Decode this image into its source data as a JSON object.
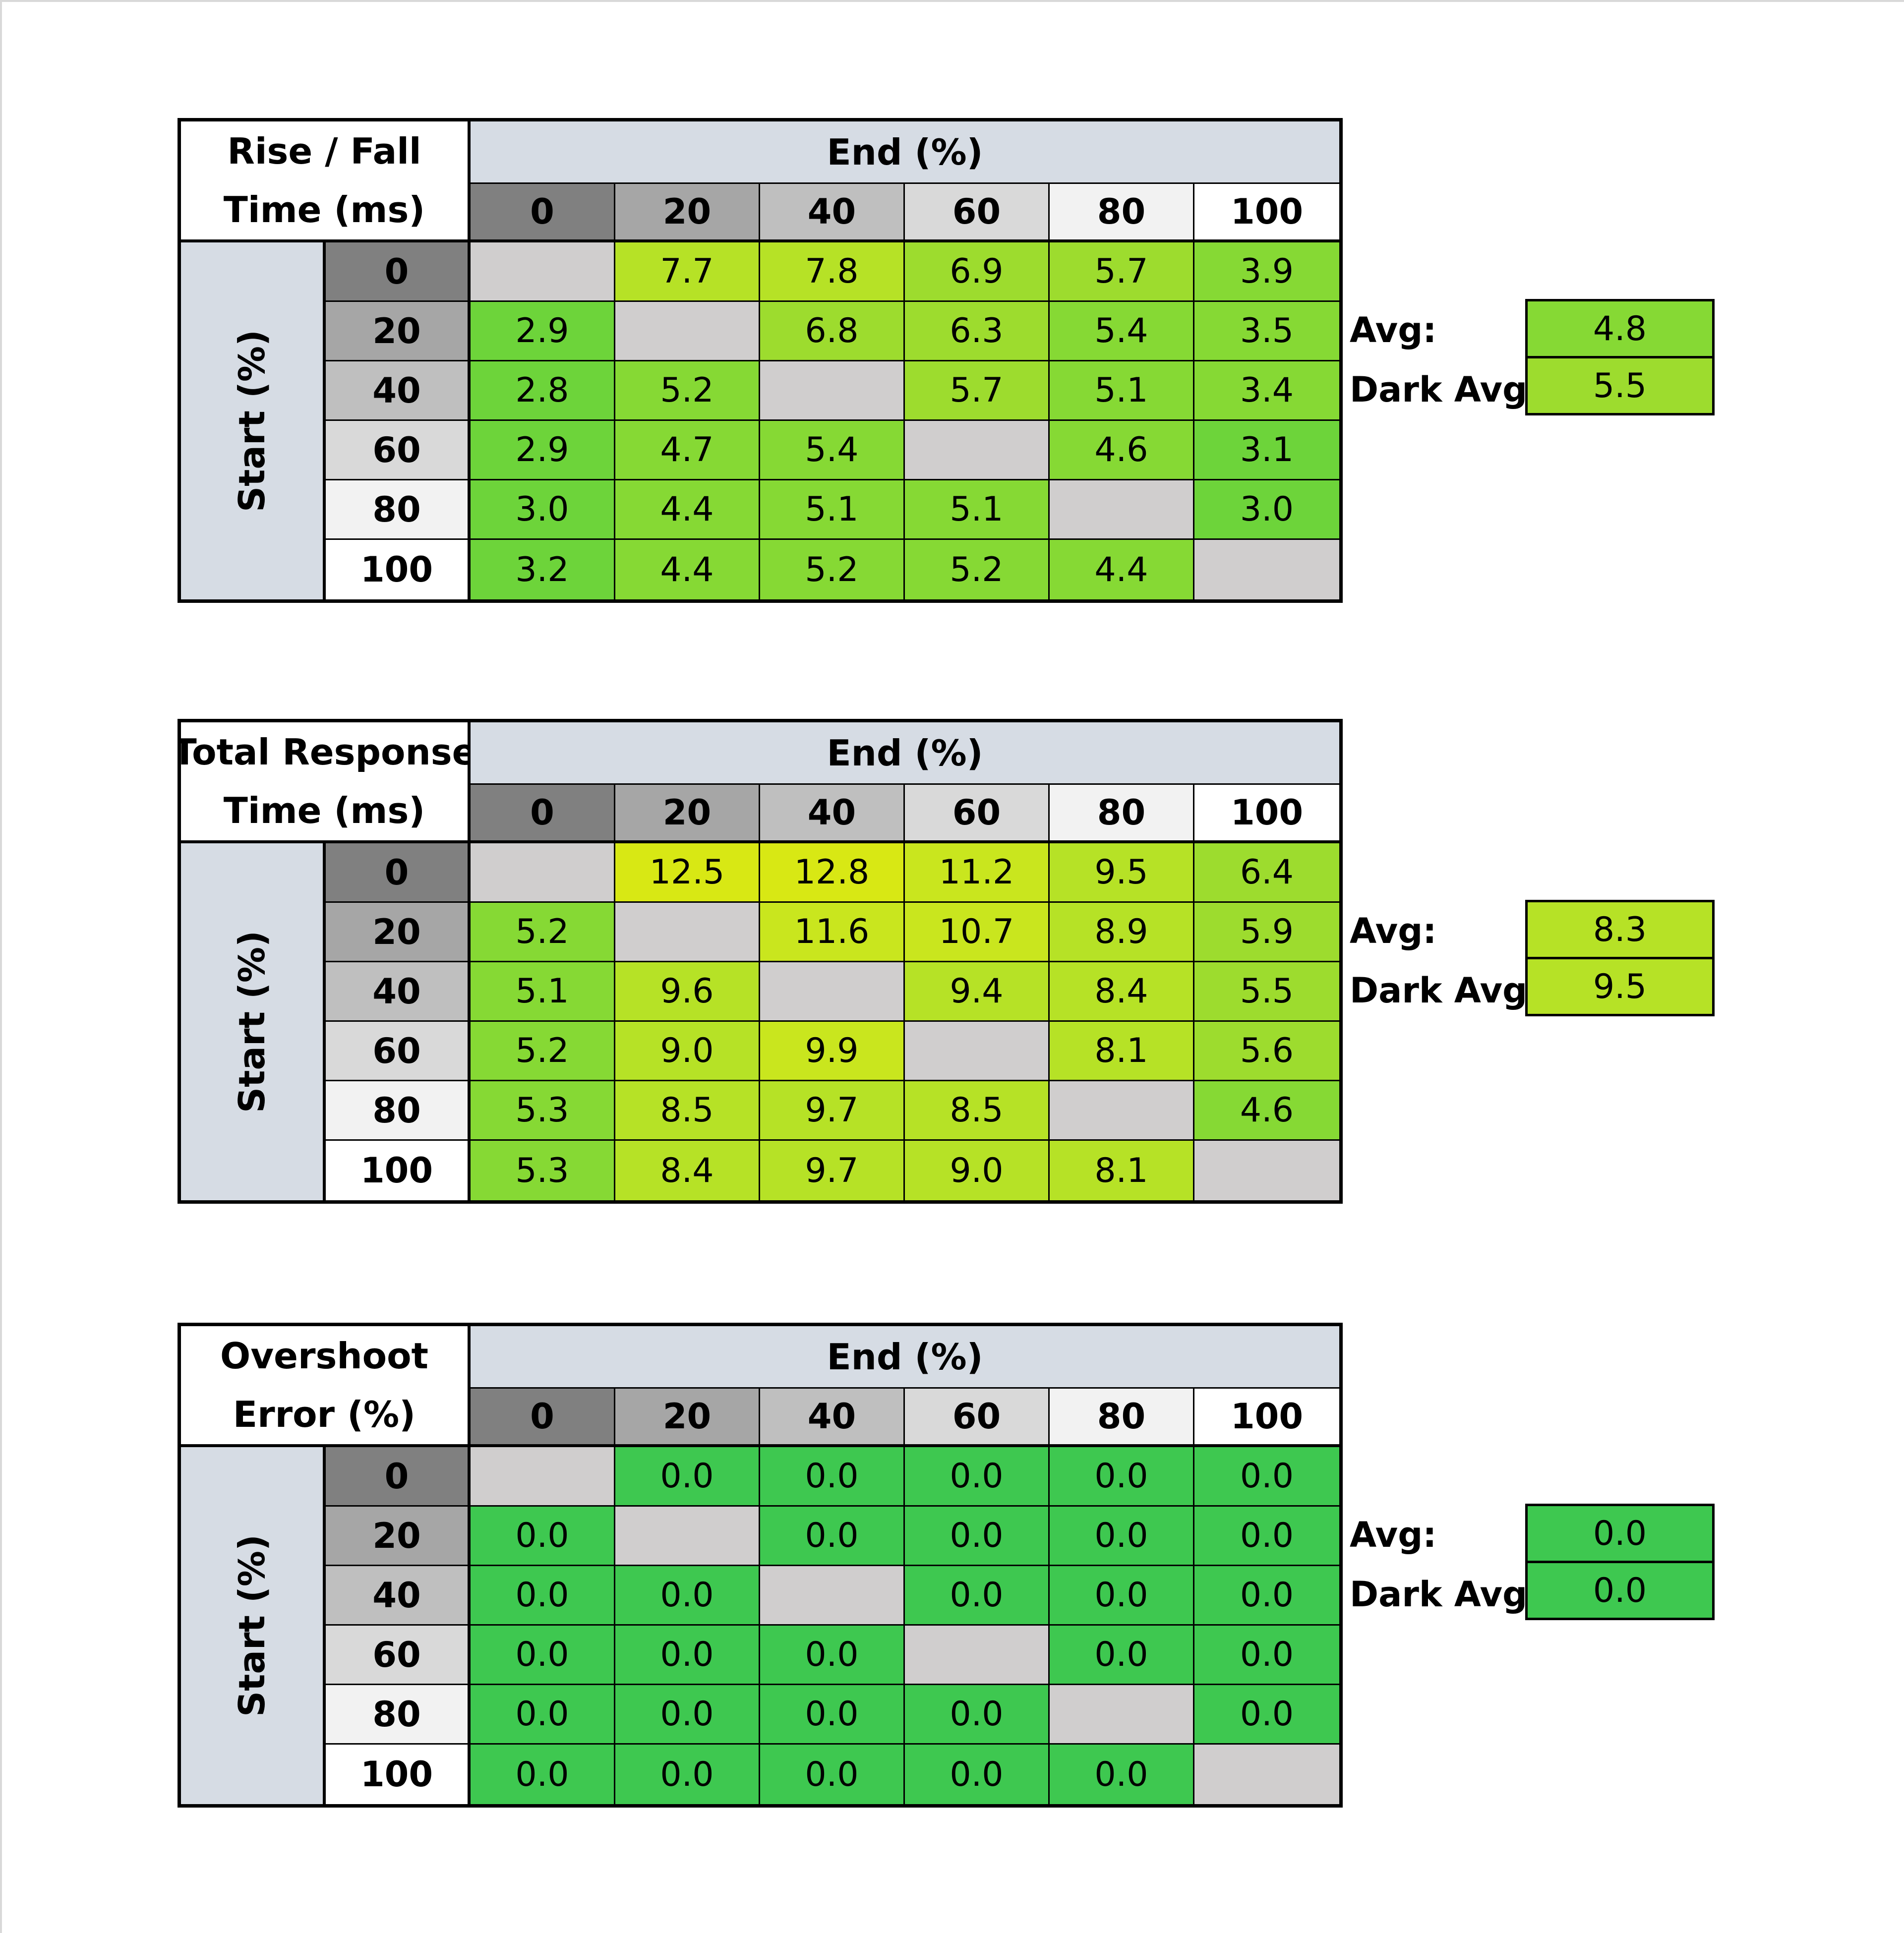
{
  "colors": {
    "header_blue": "#d6dce4",
    "empty_cell": "#d0cece",
    "scale": [
      "#3ec850",
      "#6dd43a",
      "#86d934",
      "#9ddc2e",
      "#b6e226",
      "#c9e61e",
      "#d8e814"
    ]
  },
  "level_colors": [
    "#808080",
    "#a6a6a6",
    "#bfbfbf",
    "#d9d9d9",
    "#f2f2f2",
    "#ffffff"
  ],
  "chart_data": [
    {
      "type": "heatmap",
      "title_lines": [
        "Rise / Fall",
        "Time (ms)"
      ],
      "xlabel": "End (%)",
      "ylabel": "Start (%)",
      "x": [
        "0",
        "20",
        "40",
        "60",
        "80",
        "100"
      ],
      "y": [
        "0",
        "20",
        "40",
        "60",
        "80",
        "100"
      ],
      "values": [
        [
          null,
          "7.7",
          "7.8",
          "6.9",
          "5.7",
          "3.9"
        ],
        [
          "2.9",
          null,
          "6.8",
          "6.3",
          "5.4",
          "3.5"
        ],
        [
          "2.8",
          "5.2",
          null,
          "5.7",
          "5.1",
          "3.4"
        ],
        [
          "2.9",
          "4.7",
          "5.4",
          null,
          "4.6",
          "3.1"
        ],
        [
          "3.0",
          "4.4",
          "5.1",
          "5.1",
          null,
          "3.0"
        ],
        [
          "3.2",
          "4.4",
          "5.2",
          "5.2",
          "4.4",
          null
        ]
      ],
      "avg_label": "Avg:",
      "avg": "4.8",
      "dark_avg_label": "Dark Avg:",
      "dark_avg": "5.5"
    },
    {
      "type": "heatmap",
      "title_lines": [
        "Total Response",
        "Time (ms)"
      ],
      "xlabel": "End (%)",
      "ylabel": "Start (%)",
      "x": [
        "0",
        "20",
        "40",
        "60",
        "80",
        "100"
      ],
      "y": [
        "0",
        "20",
        "40",
        "60",
        "80",
        "100"
      ],
      "values": [
        [
          null,
          "12.5",
          "12.8",
          "11.2",
          "9.5",
          "6.4"
        ],
        [
          "5.2",
          null,
          "11.6",
          "10.7",
          "8.9",
          "5.9"
        ],
        [
          "5.1",
          "9.6",
          null,
          "9.4",
          "8.4",
          "5.5"
        ],
        [
          "5.2",
          "9.0",
          "9.9",
          null,
          "8.1",
          "5.6"
        ],
        [
          "5.3",
          "8.5",
          "9.7",
          "8.5",
          null,
          "4.6"
        ],
        [
          "5.3",
          "8.4",
          "9.7",
          "9.0",
          "8.1",
          null
        ]
      ],
      "avg_label": "Avg:",
      "avg": "8.3",
      "dark_avg_label": "Dark Avg:",
      "dark_avg": "9.5"
    },
    {
      "type": "heatmap",
      "title_lines": [
        "Overshoot",
        "Error (%)"
      ],
      "xlabel": "End (%)",
      "ylabel": "Start (%)",
      "x": [
        "0",
        "20",
        "40",
        "60",
        "80",
        "100"
      ],
      "y": [
        "0",
        "20",
        "40",
        "60",
        "80",
        "100"
      ],
      "values": [
        [
          null,
          "0.0",
          "0.0",
          "0.0",
          "0.0",
          "0.0"
        ],
        [
          "0.0",
          null,
          "0.0",
          "0.0",
          "0.0",
          "0.0"
        ],
        [
          "0.0",
          "0.0",
          null,
          "0.0",
          "0.0",
          "0.0"
        ],
        [
          "0.0",
          "0.0",
          "0.0",
          null,
          "0.0",
          "0.0"
        ],
        [
          "0.0",
          "0.0",
          "0.0",
          "0.0",
          null,
          "0.0"
        ],
        [
          "0.0",
          "0.0",
          "0.0",
          "0.0",
          "0.0",
          null
        ]
      ],
      "avg_label": "Avg:",
      "avg": "0.0",
      "dark_avg_label": "Dark Avg:",
      "dark_avg": "0.0"
    }
  ]
}
